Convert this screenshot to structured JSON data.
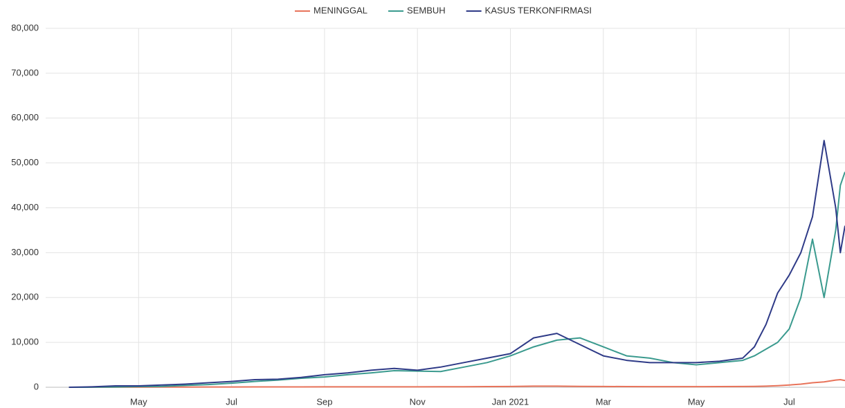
{
  "chart_data": {
    "type": "line",
    "x": [
      0.5,
      1,
      1.5,
      2,
      2.5,
      3,
      3.5,
      4,
      4.5,
      5,
      5.5,
      6,
      6.5,
      7,
      7.5,
      8,
      8.5,
      9,
      9.5,
      10,
      10.5,
      11,
      11.5,
      12,
      12.5,
      13,
      13.5,
      14,
      14.5,
      15,
      15.25,
      15.5,
      15.75,
      16,
      16.25,
      16.5,
      16.75,
      17,
      17.1,
      17.2
    ],
    "series": [
      {
        "name": "MENINGGAL",
        "color": "#e8735a",
        "values": [
          0,
          10,
          20,
          20,
          30,
          40,
          50,
          60,
          70,
          70,
          80,
          90,
          100,
          100,
          100,
          100,
          120,
          120,
          150,
          180,
          250,
          250,
          200,
          180,
          150,
          130,
          130,
          130,
          150,
          170,
          200,
          250,
          350,
          500,
          700,
          1000,
          1200,
          1600,
          1700,
          1500
        ]
      },
      {
        "name": "SEMBUH",
        "color": "#3a9a8e",
        "values": [
          0,
          10,
          50,
          150,
          200,
          400,
          600,
          900,
          1300,
          1600,
          2000,
          2300,
          2800,
          3200,
          3700,
          3600,
          3500,
          4500,
          5500,
          7000,
          9000,
          10500,
          11000,
          9000,
          7000,
          6500,
          5500,
          5000,
          5500,
          6000,
          7000,
          8500,
          10000,
          13000,
          20000,
          33000,
          20000,
          35000,
          45000,
          48000
        ]
      },
      {
        "name": "KASUS TERKONFIRMASI",
        "color": "#2e3a87",
        "values": [
          0,
          100,
          300,
          300,
          500,
          700,
          1000,
          1300,
          1700,
          1800,
          2200,
          2800,
          3200,
          3800,
          4200,
          3800,
          4500,
          5500,
          6500,
          7500,
          11000,
          12000,
          9500,
          7000,
          6000,
          5500,
          5500,
          5500,
          5800,
          6500,
          9000,
          14000,
          21000,
          25000,
          30000,
          38000,
          55000,
          40000,
          30000,
          36000
        ]
      }
    ],
    "xlim": [
      0,
      17.2
    ],
    "xticks": [
      {
        "value": 2,
        "label": "May"
      },
      {
        "value": 4,
        "label": "Jul"
      },
      {
        "value": 6,
        "label": "Sep"
      },
      {
        "value": 8,
        "label": "Nov"
      },
      {
        "value": 10,
        "label": "Jan 2021"
      },
      {
        "value": 12,
        "label": "Mar"
      },
      {
        "value": 14,
        "label": "May"
      },
      {
        "value": 16,
        "label": "Jul"
      }
    ],
    "ylim": [
      0,
      80000
    ],
    "yticks": [
      0,
      {
        "value": 10000,
        "label": "10,000"
      },
      {
        "value": 20000,
        "label": "20,000"
      },
      {
        "value": 30000,
        "label": "30,000"
      },
      {
        "value": 40000,
        "label": "40,000"
      },
      {
        "value": 50000,
        "label": "50,000"
      },
      {
        "value": 60000,
        "label": "60,000"
      },
      {
        "value": 70000,
        "label": "70,000"
      },
      {
        "value": 80000,
        "label": "80,000"
      }
    ],
    "grid": true
  }
}
